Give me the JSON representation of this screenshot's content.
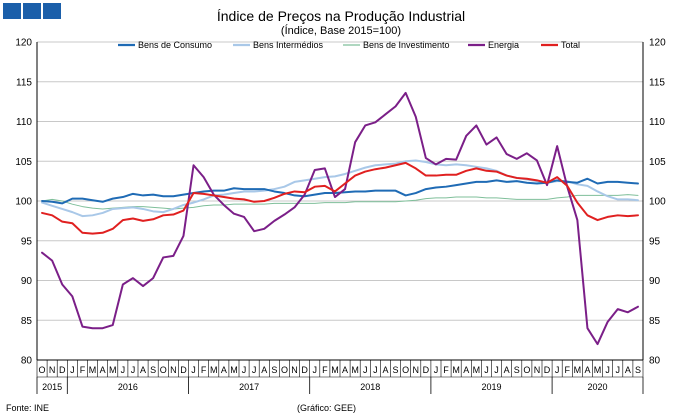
{
  "header": {
    "boxes_color": "#1b5faa"
  },
  "footer": {
    "source": "Fonte: INE",
    "credit": "(Gráfico: GEE)"
  },
  "chart_data": {
    "type": "line",
    "title": "Índice de Preços na Produção Industrial",
    "subtitle": "(Índice, Base 2015=100)",
    "ylim": [
      80,
      120
    ],
    "yticks": [
      "80",
      "85",
      "90",
      "95",
      "100",
      "105",
      "110",
      "115",
      "120"
    ],
    "grid": "horizontal",
    "legend_position": "top",
    "x_month_labels": [
      "O",
      "N",
      "D",
      "J",
      "F",
      "M",
      "A",
      "M",
      "J",
      "J",
      "A",
      "S",
      "O",
      "N",
      "D",
      "J",
      "F",
      "M",
      "A",
      "M",
      "J",
      "J",
      "A",
      "S",
      "O",
      "N",
      "D",
      "J",
      "F",
      "M",
      "A",
      "M",
      "J",
      "J",
      "A",
      "S",
      "O",
      "N",
      "D",
      "J",
      "F",
      "M",
      "A",
      "M",
      "J",
      "J",
      "A",
      "S",
      "O",
      "N",
      "D",
      "J",
      "F",
      "M",
      "A",
      "M",
      "J",
      "J",
      "A",
      "S"
    ],
    "years": [
      {
        "label": "2015",
        "start": 0,
        "end": 2
      },
      {
        "label": "2016",
        "start": 3,
        "end": 14
      },
      {
        "label": "2017",
        "start": 15,
        "end": 26
      },
      {
        "label": "2018",
        "start": 27,
        "end": 38
      },
      {
        "label": "2019",
        "start": 39,
        "end": 50
      },
      {
        "label": "2020",
        "start": 51,
        "end": 59
      }
    ],
    "series": [
      {
        "name": "Bens de Consumo",
        "color": "#1f6bb5",
        "values": [
          100.0,
          99.9,
          99.7,
          100.3,
          100.3,
          100.1,
          99.9,
          100.3,
          100.5,
          100.9,
          100.7,
          100.8,
          100.6,
          100.6,
          100.8,
          101.0,
          101.2,
          101.3,
          101.3,
          101.6,
          101.5,
          101.5,
          101.5,
          101.2,
          101.0,
          100.7,
          100.6,
          100.8,
          101.0,
          101.0,
          101.1,
          101.2,
          101.2,
          101.3,
          101.3,
          101.3,
          100.7,
          101.0,
          101.5,
          101.7,
          101.8,
          102.0,
          102.2,
          102.4,
          102.4,
          102.6,
          102.4,
          102.5,
          102.3,
          102.2,
          102.3,
          102.6,
          102.4,
          102.3,
          102.8,
          102.2,
          102.4,
          102.4,
          102.3,
          102.2
        ]
      },
      {
        "name": "Bens Intermédios",
        "color": "#a9c8e8",
        "values": [
          99.8,
          99.4,
          99.0,
          98.6,
          98.1,
          98.2,
          98.5,
          99.0,
          99.1,
          99.2,
          99.0,
          98.7,
          98.6,
          99.0,
          99.5,
          99.8,
          100.2,
          100.7,
          100.8,
          101.0,
          101.2,
          101.2,
          101.3,
          101.5,
          101.8,
          102.4,
          102.6,
          102.8,
          103.0,
          103.1,
          103.4,
          103.8,
          104.2,
          104.5,
          104.6,
          104.7,
          105.0,
          105.1,
          104.9,
          104.6,
          104.5,
          104.6,
          104.5,
          104.3,
          104.1,
          103.8,
          103.2,
          102.9,
          102.7,
          102.5,
          102.3,
          102.5,
          102.5,
          102.1,
          101.9,
          101.2,
          100.6,
          100.2,
          100.2,
          100.1
        ]
      },
      {
        "name": "Bens de Investimento",
        "color": "#7fbf9a",
        "values": [
          100.0,
          100.2,
          100.0,
          99.6,
          99.3,
          99.1,
          99.0,
          99.1,
          99.2,
          99.3,
          99.3,
          99.2,
          99.1,
          99.0,
          99.1,
          99.2,
          99.4,
          99.5,
          99.5,
          99.6,
          99.6,
          99.6,
          99.6,
          99.7,
          99.7,
          99.7,
          99.7,
          99.7,
          99.8,
          99.8,
          99.8,
          99.9,
          99.9,
          99.9,
          99.9,
          99.9,
          100.0,
          100.1,
          100.3,
          100.4,
          100.4,
          100.5,
          100.5,
          100.5,
          100.4,
          100.4,
          100.3,
          100.2,
          100.2,
          100.2,
          100.2,
          100.4,
          100.5,
          100.7,
          100.7,
          100.7,
          100.7,
          100.7,
          100.8,
          100.7
        ]
      },
      {
        "name": "Energia",
        "color": "#7b1f88",
        "values": [
          93.5,
          92.5,
          89.5,
          88.0,
          84.2,
          84.0,
          84.0,
          84.4,
          89.5,
          90.3,
          89.3,
          90.3,
          92.9,
          93.1,
          95.6,
          104.5,
          103.0,
          100.8,
          99.5,
          98.4,
          98.0,
          96.2,
          96.5,
          97.5,
          98.3,
          99.2,
          100.8,
          103.9,
          104.1,
          100.5,
          101.5,
          107.4,
          109.5,
          109.9,
          110.9,
          111.9,
          113.6,
          110.6,
          105.4,
          104.6,
          105.3,
          105.2,
          108.2,
          109.5,
          107.1,
          108.0,
          105.9,
          105.3,
          106.0,
          105.1,
          102.0,
          106.9,
          101.8,
          97.6,
          84.0,
          82.0,
          84.8,
          86.4,
          86.0,
          86.7
        ]
      },
      {
        "name": "Total",
        "color": "#e02020",
        "values": [
          98.5,
          98.2,
          97.4,
          97.2,
          96.0,
          95.9,
          96.0,
          96.5,
          97.6,
          97.8,
          97.5,
          97.7,
          98.2,
          98.3,
          98.8,
          101.0,
          100.9,
          100.7,
          100.5,
          100.3,
          100.2,
          99.9,
          100.0,
          100.4,
          100.9,
          101.2,
          101.1,
          101.8,
          101.9,
          101.2,
          102.2,
          103.2,
          103.7,
          104.0,
          104.2,
          104.5,
          104.8,
          104.1,
          103.2,
          103.2,
          103.3,
          103.3,
          103.8,
          104.1,
          103.8,
          103.7,
          103.2,
          102.9,
          102.8,
          102.6,
          102.3,
          103.0,
          101.9,
          99.8,
          98.2,
          97.6,
          98.0,
          98.2,
          98.1,
          98.2
        ]
      }
    ]
  }
}
